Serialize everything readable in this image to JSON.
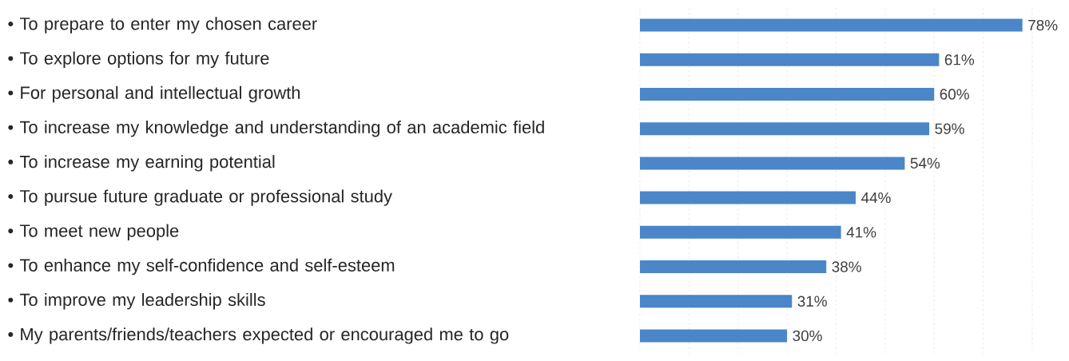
{
  "chart_data": {
    "type": "bar",
    "orientation": "horizontal",
    "categories": [
      "• To prepare to enter my chosen career",
      "• To explore options for my future",
      "• For personal and intellectual growth",
      "• To increase my knowledge and understanding of an academic field",
      "• To increase my earning potential",
      "• To pursue future graduate or professional study",
      "• To meet new people",
      "• To enhance my self-confidence and self-esteem",
      "• To improve my leadership skills",
      "• My parents/friends/teachers expected or encouraged me to go"
    ],
    "values": [
      78,
      61,
      60,
      59,
      54,
      44,
      41,
      38,
      31,
      30
    ],
    "value_labels": [
      "78%",
      "61%",
      "60%",
      "59%",
      "54%",
      "44%",
      "41%",
      "38%",
      "31%",
      "30%"
    ],
    "color": "#4a86c8",
    "xlim": [
      0,
      80
    ],
    "xticks": [
      {
        "value": 0,
        "label": null
      },
      {
        "value": 10,
        "label": null
      },
      {
        "value": 20,
        "label": null
      },
      {
        "value": 30,
        "label": null
      },
      {
        "value": 40,
        "label": null
      },
      {
        "value": 50,
        "label": null
      },
      {
        "value": 60,
        "label": null
      },
      {
        "value": 70,
        "label": null
      },
      {
        "value": 80,
        "label": null
      }
    ],
    "grid": "x",
    "tick_labels": "y"
  }
}
